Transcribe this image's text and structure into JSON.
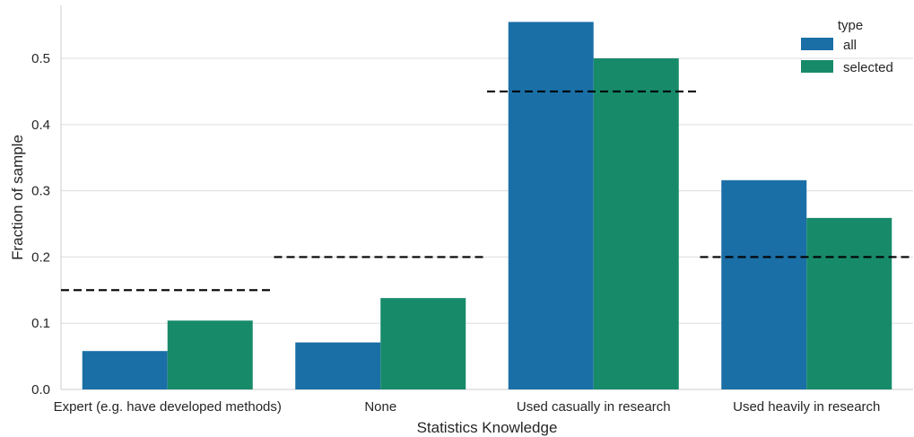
{
  "chart_data": {
    "type": "bar",
    "categories": [
      "Expert (e.g. have developed methods)",
      "None",
      "Used casually in research",
      "Used heavily in research"
    ],
    "series": [
      {
        "name": "all",
        "values": [
          0.058,
          0.071,
          0.555,
          0.316
        ],
        "color": "#1a6fa6"
      },
      {
        "name": "selected",
        "values": [
          0.104,
          0.138,
          0.5,
          0.259
        ],
        "color": "#178a6a"
      }
    ],
    "reference_lines": [
      0.15,
      0.2,
      0.45,
      0.2
    ],
    "reference_line_style": "black dashed",
    "xlabel": "Statistics Knowledge",
    "ylabel": "Fraction of sample",
    "ylim": [
      0,
      0.58
    ],
    "yticks": [
      "0.0",
      "0.1",
      "0.2",
      "0.3",
      "0.4",
      "0.5"
    ],
    "grid": "horizontal",
    "legend": {
      "title": "type",
      "placement": "top-right"
    }
  }
}
